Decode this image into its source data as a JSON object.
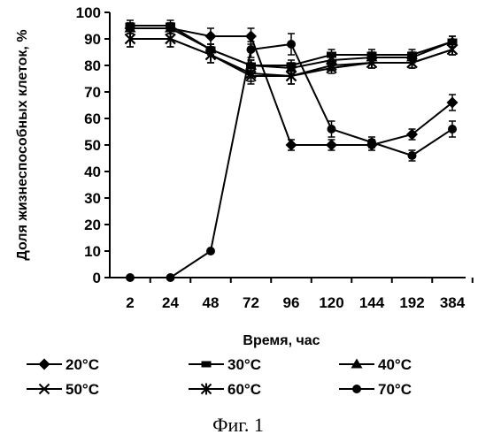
{
  "chart_data": {
    "type": "line",
    "categories": [
      "2",
      "24",
      "48",
      "72",
      "96",
      "120",
      "144",
      "192",
      "384"
    ],
    "xlabel": "Время, час",
    "ylabel": "Доля жизнеспособных клеток, %",
    "ylim": [
      0,
      100
    ],
    "yticks": [
      "0",
      "10",
      "20",
      "30",
      "40",
      "50",
      "60",
      "70",
      "80",
      "90",
      "100"
    ],
    "grid": false,
    "legend_position": "bottom",
    "caption": "Фиг. 1",
    "series": [
      {
        "name": "20°C",
        "marker": "diamond",
        "values": [
          94,
          94,
          91,
          91,
          50,
          50,
          50,
          54,
          66
        ],
        "errors": [
          2,
          2,
          3,
          3,
          2,
          2,
          2,
          2,
          3
        ]
      },
      {
        "name": "30°C",
        "marker": "square",
        "values": [
          95,
          95,
          86,
          80,
          80,
          84,
          84,
          84,
          89
        ],
        "errors": [
          2,
          2,
          2,
          2,
          2,
          2,
          2,
          2,
          2
        ]
      },
      {
        "name": "40°C",
        "marker": "triangle",
        "values": [
          94,
          94,
          86,
          80,
          79,
          82,
          83,
          83,
          89
        ],
        "errors": [
          2,
          2,
          2,
          2,
          2,
          2,
          2,
          2,
          2
        ]
      },
      {
        "name": "50°C",
        "marker": "x",
        "values": [
          90,
          90,
          84,
          76,
          76,
          79,
          81,
          81,
          86
        ],
        "errors": [
          3,
          3,
          3,
          3,
          3,
          2,
          2,
          2,
          2
        ]
      },
      {
        "name": "60°C",
        "marker": "star",
        "values": [
          90,
          90,
          84,
          77,
          76,
          80,
          81,
          81,
          86
        ],
        "errors": [
          3,
          3,
          3,
          3,
          3,
          2,
          2,
          2,
          2
        ]
      },
      {
        "name": "70°C",
        "marker": "circle",
        "values": [
          0,
          0,
          10,
          86,
          88,
          56,
          51,
          46,
          56
        ],
        "errors": [
          0,
          0,
          0,
          3,
          4,
          3,
          2,
          2,
          3
        ]
      }
    ]
  }
}
